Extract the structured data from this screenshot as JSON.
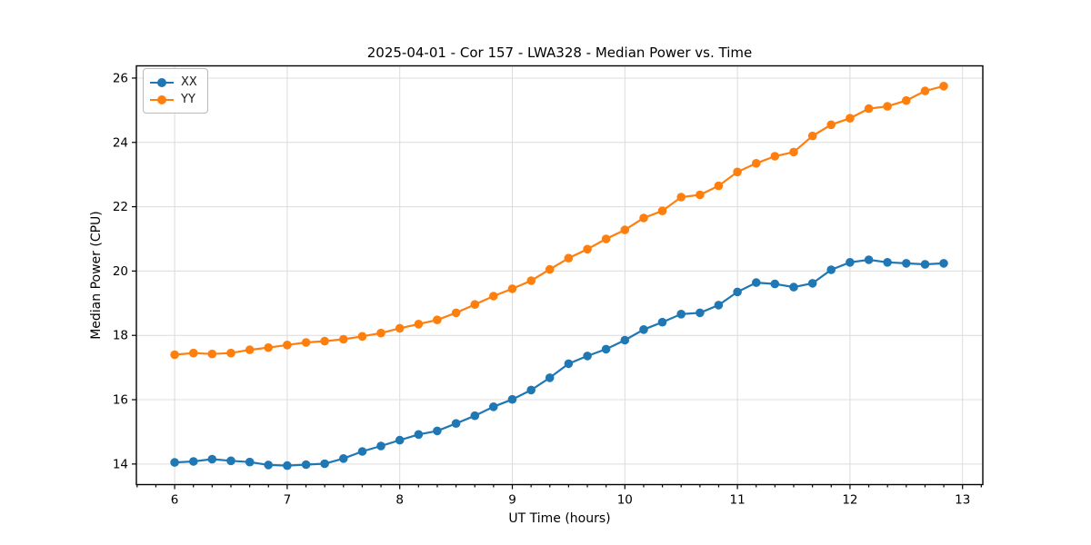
{
  "figure": {
    "background": "#ffffff",
    "spine_color": "#000000",
    "grid_color": "#dcdcdc",
    "tick_label_color": "#000000"
  },
  "chart_data": {
    "type": "line",
    "title": "2025-04-01 - Cor 157 - LWA328 - Median Power vs. Time",
    "xlabel": "UT Time (hours)",
    "ylabel": "Median Power (CPU)",
    "xlim": [
      5.66,
      13.18
    ],
    "ylim": [
      13.36,
      26.38
    ],
    "xticks": [
      6,
      7,
      8,
      9,
      10,
      11,
      12,
      13
    ],
    "yticks": [
      14,
      16,
      18,
      20,
      22,
      24,
      26
    ],
    "x_minor_step_hours": 0.16667,
    "grid": true,
    "legend_position": "upper-left",
    "marker": "circle",
    "x": [
      6.0,
      6.167,
      6.333,
      6.5,
      6.667,
      6.833,
      7.0,
      7.167,
      7.333,
      7.5,
      7.667,
      7.833,
      8.0,
      8.167,
      8.333,
      8.5,
      8.667,
      8.833,
      9.0,
      9.167,
      9.333,
      9.5,
      9.667,
      9.833,
      10.0,
      10.167,
      10.333,
      10.5,
      10.667,
      10.833,
      11.0,
      11.167,
      11.333,
      11.5,
      11.667,
      11.833,
      12.0,
      12.167,
      12.333,
      12.5,
      12.667,
      12.833
    ],
    "series": [
      {
        "name": "XX",
        "color": "#1f77b4",
        "values": [
          14.05,
          14.08,
          14.15,
          14.1,
          14.06,
          13.97,
          13.95,
          13.98,
          14.01,
          14.17,
          14.39,
          14.56,
          14.74,
          14.92,
          15.03,
          15.26,
          15.5,
          15.78,
          16.01,
          16.3,
          16.68,
          17.12,
          17.36,
          17.57,
          17.85,
          18.18,
          18.41,
          18.66,
          18.7,
          18.94,
          19.35,
          19.64,
          19.6,
          19.5,
          19.62,
          20.04,
          20.27,
          20.35,
          20.27,
          20.24,
          20.21,
          20.24
        ]
      },
      {
        "name": "YY",
        "color": "#ff7f0e",
        "values": [
          17.4,
          17.45,
          17.42,
          17.45,
          17.55,
          17.62,
          17.7,
          17.78,
          17.82,
          17.88,
          17.97,
          18.07,
          18.22,
          18.35,
          18.48,
          18.7,
          18.96,
          19.22,
          19.45,
          19.7,
          20.05,
          20.4,
          20.68,
          21.0,
          21.28,
          21.65,
          21.87,
          22.3,
          22.37,
          22.65,
          23.08,
          23.35,
          23.57,
          23.7,
          24.2,
          24.55,
          24.75,
          25.05,
          25.12,
          25.3,
          25.6,
          25.75
        ]
      }
    ]
  }
}
